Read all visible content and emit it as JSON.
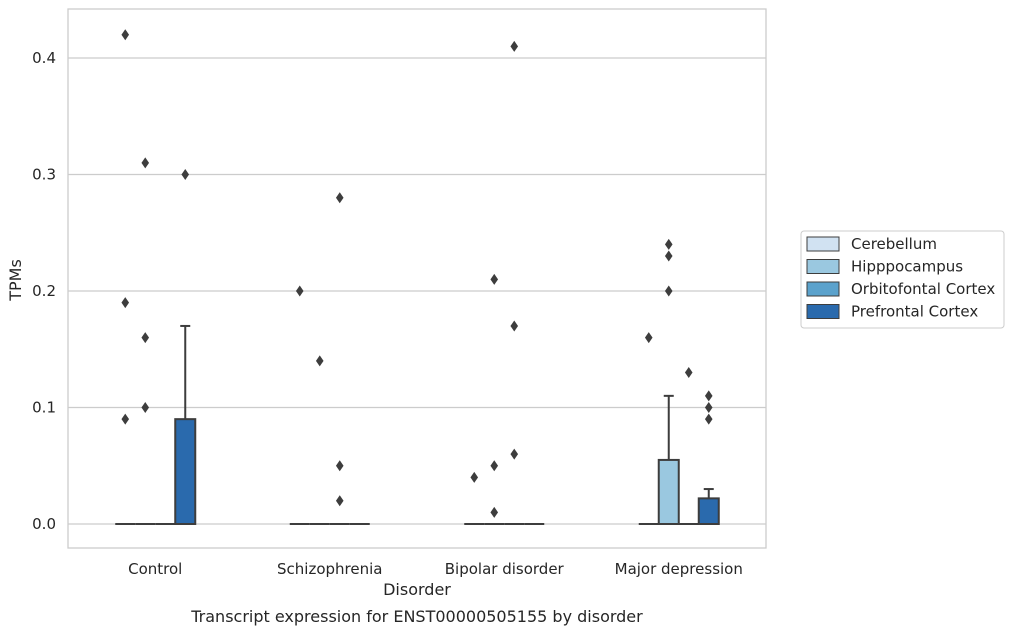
{
  "chart_data": {
    "type": "box",
    "caption": "Transcript expression for ENST00000505155 by disorder",
    "xlabel": "Disorder",
    "ylabel": "TPMs",
    "ylim": [
      -0.02,
      0.44
    ],
    "yticks": [
      0.0,
      0.1,
      0.2,
      0.3,
      0.4
    ],
    "ytick_labels": [
      "0.0",
      "0.1",
      "0.2",
      "0.3",
      "0.4"
    ],
    "grid": "horizontal",
    "legend_position": "right",
    "categories": [
      "Control",
      "Schizophrenia",
      "Bipolar disorder",
      "Major depression"
    ],
    "series": [
      {
        "name": "Cerebellum",
        "color": "#d1e2f2",
        "boxes": [
          {
            "q1": 0,
            "median": 0,
            "q3": 0,
            "whisker_low": 0,
            "whisker_high": 0,
            "outliers": [
              0.09,
              0.19,
              0.42
            ]
          },
          {
            "q1": 0,
            "median": 0,
            "q3": 0,
            "whisker_low": 0,
            "whisker_high": 0,
            "outliers": [
              0.2
            ]
          },
          {
            "q1": 0,
            "median": 0,
            "q3": 0,
            "whisker_low": 0,
            "whisker_high": 0,
            "outliers": [
              0.04
            ]
          },
          {
            "q1": 0,
            "median": 0,
            "q3": 0,
            "whisker_low": 0,
            "whisker_high": 0,
            "outliers": [
              0.16
            ]
          }
        ]
      },
      {
        "name": "Hipppocampus",
        "color": "#9ac8e0",
        "boxes": [
          {
            "q1": 0,
            "median": 0,
            "q3": 0,
            "whisker_low": 0,
            "whisker_high": 0,
            "outliers": [
              0.1,
              0.16,
              0.31
            ]
          },
          {
            "q1": 0,
            "median": 0,
            "q3": 0,
            "whisker_low": 0,
            "whisker_high": 0,
            "outliers": [
              0.14
            ]
          },
          {
            "q1": 0,
            "median": 0,
            "q3": 0,
            "whisker_low": 0,
            "whisker_high": 0,
            "outliers": [
              0.01,
              0.05,
              0.21
            ]
          },
          {
            "q1": 0,
            "median": 0,
            "q3": 0.055,
            "whisker_low": 0,
            "whisker_high": 0.11,
            "outliers": [
              0.2,
              0.23,
              0.24
            ]
          }
        ]
      },
      {
        "name": "Orbitofontal Cortex",
        "color": "#5ba2cc",
        "boxes": [
          {
            "q1": 0,
            "median": 0,
            "q3": 0,
            "whisker_low": 0,
            "whisker_high": 0,
            "outliers": []
          },
          {
            "q1": 0,
            "median": 0,
            "q3": 0,
            "whisker_low": 0,
            "whisker_high": 0,
            "outliers": [
              0.02,
              0.05,
              0.28
            ]
          },
          {
            "q1": 0,
            "median": 0,
            "q3": 0,
            "whisker_low": 0,
            "whisker_high": 0,
            "outliers": [
              0.06,
              0.17,
              0.41
            ]
          },
          {
            "q1": 0,
            "median": 0,
            "q3": 0,
            "whisker_low": 0,
            "whisker_high": 0,
            "outliers": [
              0.13
            ]
          }
        ]
      },
      {
        "name": "Prefrontal Cortex",
        "color": "#2a6aad",
        "boxes": [
          {
            "q1": 0,
            "median": 0,
            "q3": 0.09,
            "whisker_low": 0,
            "whisker_high": 0.17,
            "outliers": [
              0.3
            ]
          },
          {
            "q1": 0,
            "median": 0,
            "q3": 0,
            "whisker_low": 0,
            "whisker_high": 0,
            "outliers": []
          },
          {
            "q1": 0,
            "median": 0,
            "q3": 0,
            "whisker_low": 0,
            "whisker_high": 0,
            "outliers": []
          },
          {
            "q1": 0,
            "median": 0,
            "q3": 0.022,
            "whisker_low": 0,
            "whisker_high": 0.03,
            "outliers": [
              0.09,
              0.1,
              0.11
            ]
          }
        ]
      }
    ]
  }
}
